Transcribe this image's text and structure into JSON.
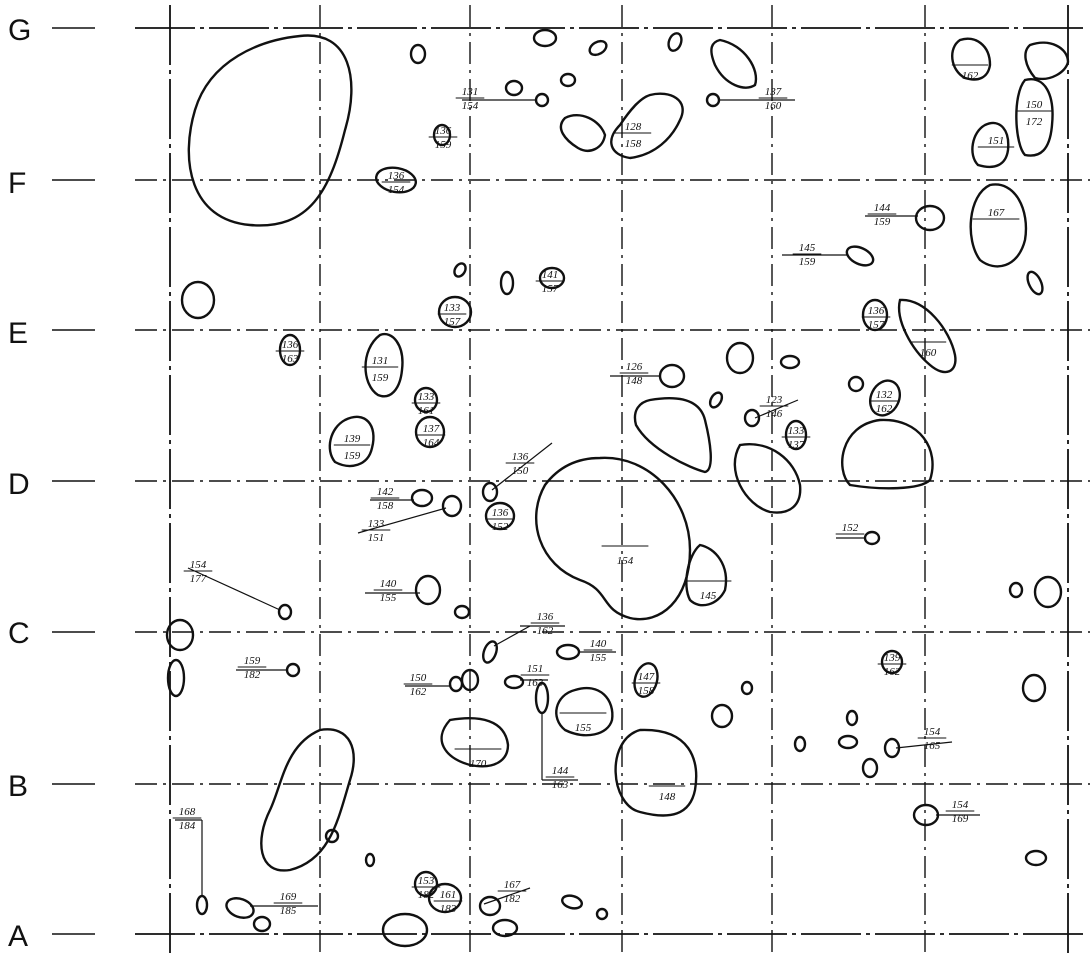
{
  "rows": [
    "G",
    "F",
    "E",
    "D",
    "C",
    "B",
    "A"
  ],
  "labels": [
    {
      "top": "131",
      "bottom": "154"
    },
    {
      "top": "137",
      "bottom": "160"
    },
    {
      "top": "128",
      "bottom": "158"
    },
    {
      "top": "136",
      "bottom": "159"
    },
    {
      "top": "",
      "bottom": "162"
    },
    {
      "top": "150",
      "bottom": "172"
    },
    {
      "top": "151",
      "bottom": ""
    },
    {
      "top": "167",
      "bottom": ""
    },
    {
      "top": "136",
      "bottom": "154"
    },
    {
      "top": "144",
      "bottom": "159"
    },
    {
      "top": "145",
      "bottom": "159"
    },
    {
      "top": "141",
      "bottom": "157"
    },
    {
      "top": "133",
      "bottom": "157"
    },
    {
      "top": "136",
      "bottom": "157"
    },
    {
      "top": "",
      "bottom": "160"
    },
    {
      "top": "136",
      "bottom": "163"
    },
    {
      "top": "131",
      "bottom": "159"
    },
    {
      "top": "126",
      "bottom": "148"
    },
    {
      "top": "133",
      "bottom": "161"
    },
    {
      "top": "123",
      "bottom": "146"
    },
    {
      "top": "132",
      "bottom": "162"
    },
    {
      "top": "137",
      "bottom": "164"
    },
    {
      "top": "139",
      "bottom": "159"
    },
    {
      "top": "133",
      "bottom": "137"
    },
    {
      "top": "136",
      "bottom": "150"
    },
    {
      "top": "142",
      "bottom": "158"
    },
    {
      "top": "133",
      "bottom": "151"
    },
    {
      "top": "136",
      "bottom": "152"
    },
    {
      "top": "",
      "bottom": "154"
    },
    {
      "top": "152",
      "bottom": ""
    },
    {
      "top": "154",
      "bottom": "177"
    },
    {
      "top": "140",
      "bottom": "155"
    },
    {
      "top": "",
      "bottom": "145"
    },
    {
      "top": "136",
      "bottom": "162"
    },
    {
      "top": "140",
      "bottom": "155"
    },
    {
      "top": "159",
      "bottom": "182"
    },
    {
      "top": "150",
      "bottom": "162"
    },
    {
      "top": "151",
      "bottom": "163"
    },
    {
      "top": "",
      "bottom": "155"
    },
    {
      "top": "147",
      "bottom": "158"
    },
    {
      "top": "139",
      "bottom": "162"
    },
    {
      "top": "",
      "bottom": "170"
    },
    {
      "top": "144",
      "bottom": "163"
    },
    {
      "top": "",
      "bottom": "148"
    },
    {
      "top": "154",
      "bottom": "165"
    },
    {
      "top": "154",
      "bottom": "169"
    },
    {
      "top": "168",
      "bottom": "184"
    },
    {
      "top": "169",
      "bottom": "185"
    },
    {
      "top": "153",
      "bottom": "182"
    },
    {
      "top": "161",
      "bottom": "183"
    },
    {
      "top": "167",
      "bottom": "182"
    }
  ]
}
